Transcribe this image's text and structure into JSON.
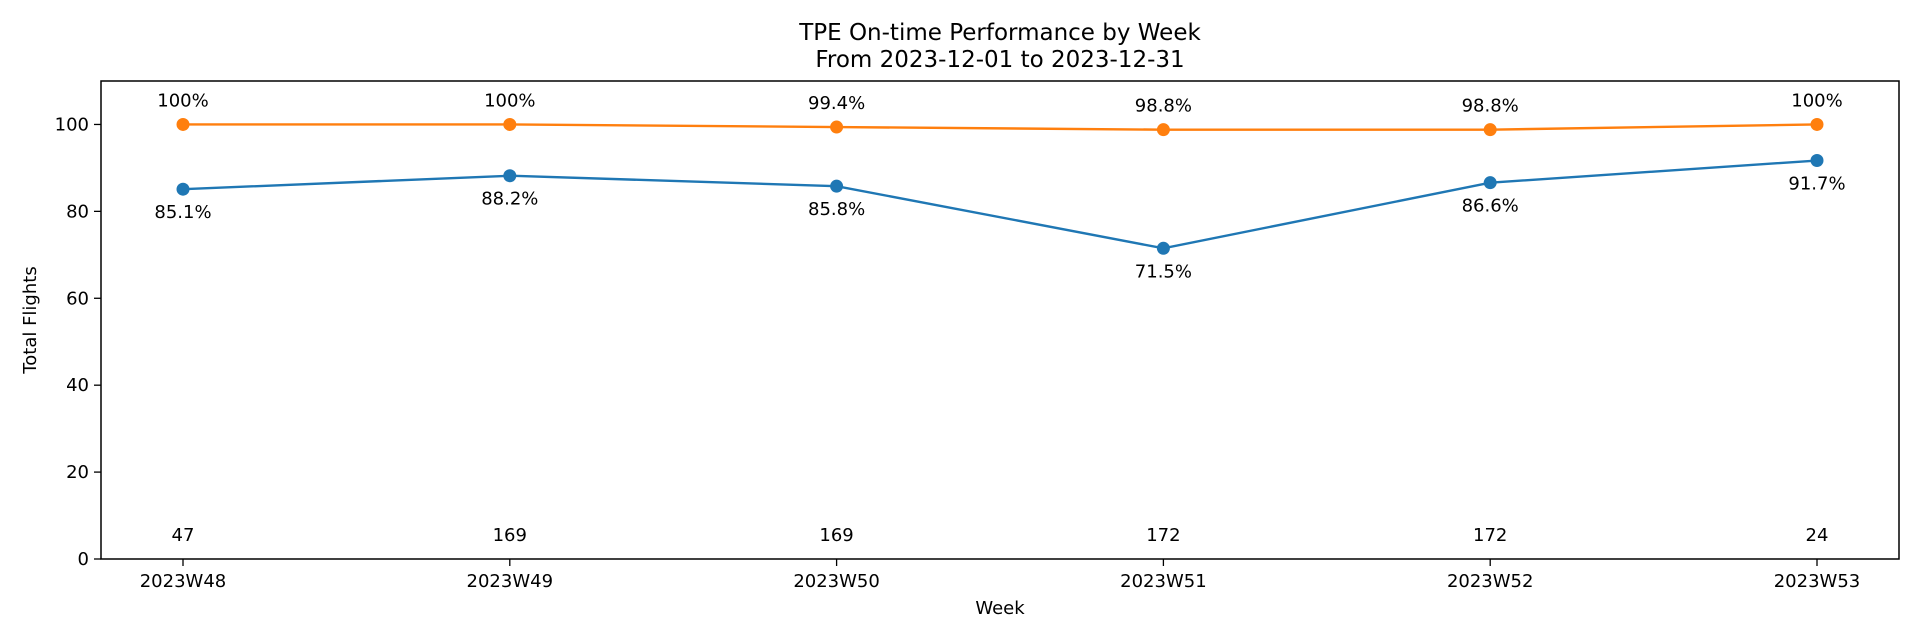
{
  "chart_data": {
    "type": "line",
    "title": "TPE On-time Performance by Week",
    "subtitle": "From 2023-12-01 to 2023-12-31",
    "xlabel": "Week",
    "ylabel": "Total Flights",
    "ylim": [
      0,
      110
    ],
    "yticks": [
      0,
      20,
      40,
      60,
      80,
      100
    ],
    "categories": [
      "2023W48",
      "2023W49",
      "2023W50",
      "2023W51",
      "2023W52",
      "2023W53"
    ],
    "series": [
      {
        "color": "#1f77b4",
        "values": [
          85.1,
          88.2,
          85.8,
          71.5,
          86.6,
          91.7
        ],
        "labels": [
          "85.1%",
          "88.2%",
          "85.8%",
          "71.5%",
          "86.6%",
          "91.7%"
        ],
        "label_position": "below"
      },
      {
        "color": "#ff7f0e",
        "values": [
          100,
          100,
          99.4,
          98.8,
          98.8,
          100
        ],
        "labels": [
          "100%",
          "100%",
          "99.4%",
          "98.8%",
          "98.8%",
          "100%"
        ],
        "label_position": "above"
      }
    ],
    "count_labels": [
      "47",
      "169",
      "169",
      "172",
      "172",
      "24"
    ],
    "grid": false,
    "legend": "none"
  }
}
